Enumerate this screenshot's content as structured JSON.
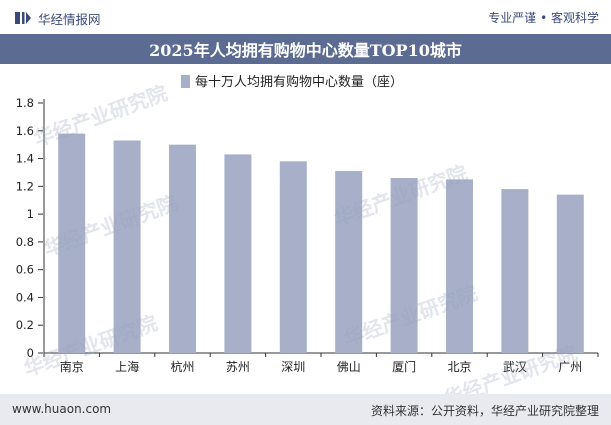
{
  "header": {
    "brand_name": "华经情报网",
    "tagline": "专业严谨 • 客观科学"
  },
  "watermark_text": "华经产业研究院",
  "chart_data": {
    "type": "bar",
    "title": "2025年人均拥有购物中心数量TOP10城市",
    "categories": [
      "南京",
      "上海",
      "杭州",
      "苏州",
      "深圳",
      "佛山",
      "厦门",
      "北京",
      "武汉",
      "广州"
    ],
    "series": [
      {
        "name": "每十万人均拥有购物中心数量（座）",
        "values": [
          1.58,
          1.53,
          1.5,
          1.43,
          1.38,
          1.31,
          1.26,
          1.25,
          1.18,
          1.14
        ]
      }
    ],
    "yticks": [
      "0",
      "0.2",
      "0.4",
      "0.6",
      "0.8",
      "1",
      "1.2",
      "1.4",
      "1.6",
      "1.8"
    ],
    "ylim": [
      0,
      1.8
    ],
    "legend_position": "top-center",
    "grid": false,
    "colors": {
      "bar": "#a7b0c8",
      "axis": "#333333",
      "title_bg": "#5c6b91"
    }
  },
  "footer": {
    "website": "www.huaon.com",
    "source": "资料来源：公开资料，华经产业研究院整理"
  }
}
